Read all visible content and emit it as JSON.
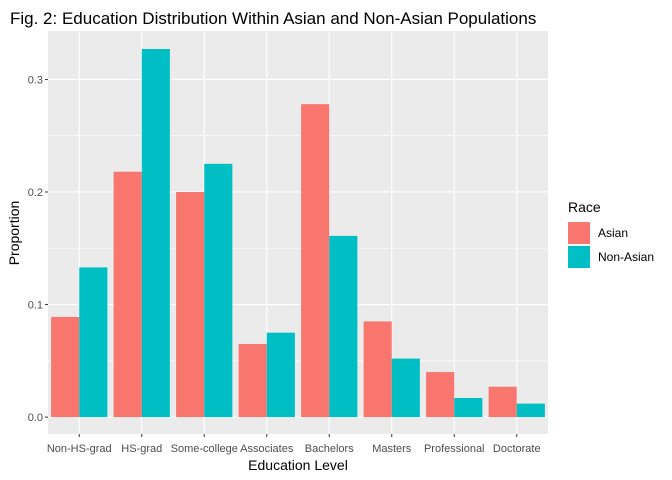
{
  "chart_data": {
    "type": "bar",
    "title": "Fig. 2: Education Distribution Within Asian and Non-Asian Populations",
    "xlabel": "Education Level",
    "ylabel": "Proportion",
    "categories": [
      "Non-HS-grad",
      "HS-grad",
      "Some-college",
      "Associates",
      "Bachelors",
      "Masters",
      "Professional",
      "Doctorate"
    ],
    "series": [
      {
        "name": "Asian",
        "color": "#F8766D",
        "values": [
          0.089,
          0.218,
          0.2,
          0.065,
          0.278,
          0.085,
          0.04,
          0.027
        ]
      },
      {
        "name": "Non-Asian",
        "color": "#00BFC4",
        "values": [
          0.133,
          0.327,
          0.225,
          0.075,
          0.161,
          0.052,
          0.017,
          0.012
        ]
      }
    ],
    "ylim": [
      -0.015,
      0.343
    ],
    "yticks": [
      0.0,
      0.1,
      0.2,
      0.3
    ],
    "ytick_labels": [
      "0.0",
      "0.1",
      "0.2",
      "0.3"
    ],
    "grid": true,
    "panel_background": "#EBEBEB",
    "legend": {
      "title": "Race",
      "position": "right",
      "items": [
        "Asian",
        "Non-Asian"
      ]
    }
  }
}
